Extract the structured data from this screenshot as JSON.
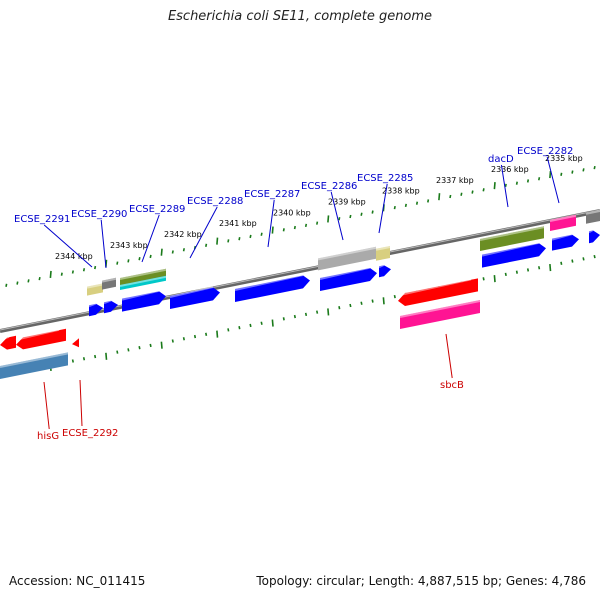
{
  "title": "Escherichia coli SE11, complete genome",
  "accession": "Accession: NC_011415",
  "topology": "Topology: circular; Length: 4,887,515 bp; Genes: 4,786",
  "colors": {
    "forward_label": "#0000cc",
    "reverse_label": "#cc0000",
    "backbone": "#888888",
    "tick": "#1a7a1a",
    "forward_cds": "#0000ff",
    "reverse_cds": "#ff0000",
    "olive": "#6b8e23",
    "khaki": "#d8cf80",
    "gray": "#777777",
    "light_gray": "#aaaaaa",
    "cyan": "#00c8c8",
    "pink": "#ff1493",
    "steel": "#4682b4"
  },
  "scale_ticks": [
    "2344 kbp",
    "2343 kbp",
    "2342 kbp",
    "2341 kbp",
    "2340 kbp",
    "2339 kbp",
    "2338 kbp",
    "2337 kbp",
    "2336 kbp",
    "2335 kbp"
  ],
  "forward_labels": [
    "ECSE_2291",
    "ECSE_2290",
    "ECSE_2289",
    "ECSE_2288",
    "ECSE_2287",
    "ECSE_2286",
    "ECSE_2285",
    "dacD",
    "ECSE_2282"
  ],
  "reverse_labels": [
    "hisG",
    "ECSE_2292",
    "sbcB"
  ]
}
